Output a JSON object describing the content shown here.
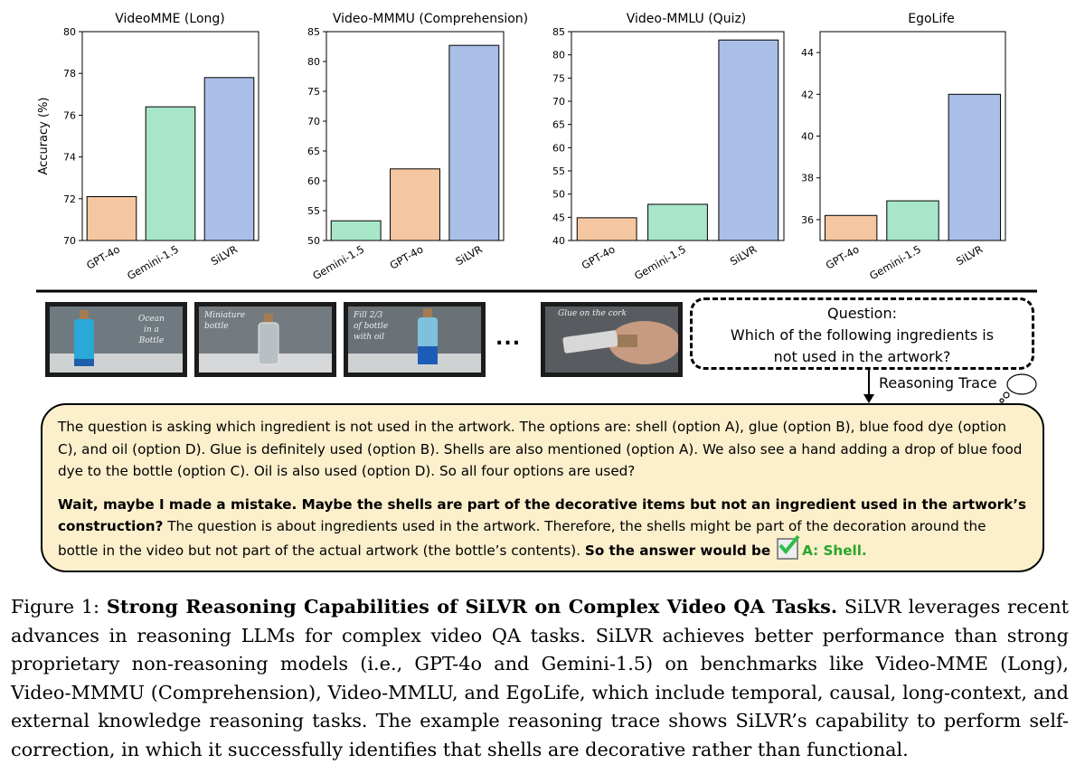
{
  "chart_data": [
    {
      "type": "bar",
      "title": "VideoMME (Long)",
      "ylabel": "Accuracy (%)",
      "categories": [
        "GPT-4o",
        "Gemini-1.5",
        "SiLVR"
      ],
      "values": [
        72.1,
        76.4,
        77.8
      ],
      "ylim": [
        70,
        80
      ],
      "yticks": [
        70,
        72,
        74,
        76,
        78,
        80
      ],
      "colors": [
        "#f4c7a1",
        "#a8e6c9",
        "#a9bfe8"
      ]
    },
    {
      "type": "bar",
      "title": "Video-MMMU (Comprehension)",
      "ylabel": "",
      "categories": [
        "Gemini-1.5",
        "GPT-4o",
        "SiLVR"
      ],
      "values": [
        53.3,
        62.0,
        82.7
      ],
      "ylim": [
        50,
        85
      ],
      "yticks": [
        50,
        55,
        60,
        65,
        70,
        75,
        80,
        85
      ],
      "colors": [
        "#a8e6c9",
        "#f4c7a1",
        "#a9bfe8"
      ]
    },
    {
      "type": "bar",
      "title": "Video-MMLU (Quiz)",
      "ylabel": "",
      "categories": [
        "GPT-4o",
        "Gemini-1.5",
        "SiLVR"
      ],
      "values": [
        44.9,
        47.8,
        83.2
      ],
      "ylim": [
        40,
        85
      ],
      "yticks": [
        40,
        45,
        50,
        55,
        60,
        65,
        70,
        75,
        80,
        85
      ],
      "colors": [
        "#f4c7a1",
        "#a8e6c9",
        "#a9bfe8"
      ]
    },
    {
      "type": "bar",
      "title": "EgoLife",
      "ylabel": "",
      "categories": [
        "GPT-4o",
        "Gemini-1.5",
        "SiLVR"
      ],
      "values": [
        36.2,
        36.9,
        42.0
      ],
      "ylim": [
        35,
        45
      ],
      "yticks": [
        36,
        38,
        40,
        42,
        44
      ],
      "colors": [
        "#f4c7a1",
        "#a8e6c9",
        "#a9bfe8"
      ]
    }
  ],
  "frames": [
    {
      "caption": "Ocean\nin a\nBottle",
      "scene": "blue"
    },
    {
      "caption": "Miniature\nbottle",
      "scene": "empty"
    },
    {
      "caption": "Fill 2/3\nof bottle\nwith oil",
      "scene": "blue"
    },
    {
      "caption": "Glue on the cork",
      "scene": "hand"
    }
  ],
  "ellipsis": "...",
  "question": {
    "title": "Question:",
    "line1": "Which of the following ingredients is",
    "line2": "not used in the artwork?"
  },
  "trace_label": "Reasoning Trace",
  "trace": {
    "p1": "The question is asking which ingredient is not used in the artwork. The options are: shell (option A), glue (option B), blue food dye (option C), and oil (option D). Glue is definitely used (option B). Shells are also mentioned (option A). We also see a hand adding a drop of blue food dye to the bottle (option C). Oil is also used (option D). So all four options are used?",
    "p2_bold": "Wait, maybe I made a mistake. Maybe the shells are part of the decorative items but not an ingredient used in the artwork’s construction?",
    "p2_text": " The question is about ingredients used in the artwork. Therefore, the shells might be part of the decoration around the bottle in the video but not part of the actual artwork (the bottle’s contents). ",
    "p2_bold2": "So the answer would be",
    "answer": "A: Shell."
  },
  "caption": {
    "label": "Figure 1: ",
    "bold": "Strong Reasoning Capabilities of SiLVR on Complex Video QA Tasks.",
    "text": " SiLVR leverages recent advances in reasoning LLMs for complex video QA tasks.  SiLVR achieves better performance than strong proprietary non-reasoning models (i.e., GPT-4o and Gemini-1.5) on benchmarks like Video-MME (Long), Video-MMMU (Comprehension), Video-MMLU, and EgoLife, which include temporal, causal, long-context, and external knowledge reasoning tasks. The example reasoning trace shows SiLVR’s capability to perform self-correction, in which it successfully identifies that shells are decorative rather than functional."
  }
}
